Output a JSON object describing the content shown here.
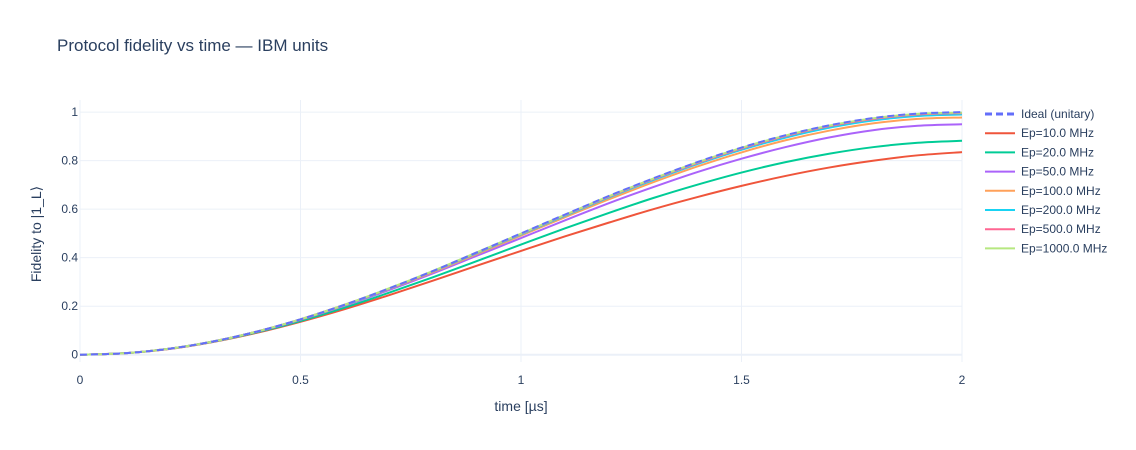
{
  "chart_data": {
    "type": "line",
    "title": "Protocol fidelity vs time — IBM units",
    "xlabel": "time [µs]",
    "ylabel": "Fidelity to |1_L⟩",
    "xlim": [
      0,
      2
    ],
    "ylim": [
      -0.03,
      1.05
    ],
    "xticks": [
      0,
      0.5,
      1,
      1.5,
      2
    ],
    "xtick_labels": [
      "0",
      "0.5",
      "1",
      "1.5",
      "2"
    ],
    "yticks": [
      0,
      0.2,
      0.4,
      0.6,
      0.8,
      1
    ],
    "ytick_labels": [
      "0",
      "0.2",
      "0.4",
      "0.6",
      "0.8",
      "1"
    ],
    "grid": true,
    "legend_position": "right",
    "x": [
      0,
      0.1,
      0.2,
      0.3,
      0.4,
      0.5,
      0.6,
      0.7,
      0.8,
      0.9,
      1.0,
      1.1,
      1.2,
      1.3,
      1.4,
      1.5,
      1.6,
      1.7,
      1.8,
      1.9,
      2.0
    ],
    "series": [
      {
        "name": "Ideal (unitary)",
        "color": "#636efa",
        "dash": true,
        "values": [
          0,
          0.006,
          0.024,
          0.054,
          0.095,
          0.146,
          0.206,
          0.273,
          0.345,
          0.422,
          0.5,
          0.578,
          0.655,
          0.727,
          0.794,
          0.854,
          0.905,
          0.946,
          0.976,
          0.994,
          1.0
        ]
      },
      {
        "name": "Ep=10.0 MHz",
        "color": "#ef553b",
        "dash": false,
        "values": [
          0,
          0.006,
          0.023,
          0.052,
          0.09,
          0.136,
          0.188,
          0.245,
          0.305,
          0.367,
          0.428,
          0.488,
          0.545,
          0.6,
          0.65,
          0.696,
          0.737,
          0.772,
          0.8,
          0.822,
          0.835
        ]
      },
      {
        "name": "Ep=20.0 MHz",
        "color": "#00cc96",
        "dash": false,
        "values": [
          0,
          0.006,
          0.024,
          0.053,
          0.092,
          0.139,
          0.194,
          0.255,
          0.319,
          0.386,
          0.454,
          0.521,
          0.585,
          0.646,
          0.701,
          0.751,
          0.794,
          0.829,
          0.856,
          0.874,
          0.882
        ]
      },
      {
        "name": "Ep=50.0 MHz",
        "color": "#ab63fa",
        "dash": false,
        "values": [
          0,
          0.006,
          0.024,
          0.054,
          0.094,
          0.144,
          0.202,
          0.266,
          0.335,
          0.408,
          0.481,
          0.554,
          0.625,
          0.691,
          0.753,
          0.808,
          0.856,
          0.896,
          0.926,
          0.944,
          0.95
        ]
      },
      {
        "name": "Ep=100.0 MHz",
        "color": "#ffa15a",
        "dash": false,
        "values": [
          0,
          0.006,
          0.024,
          0.054,
          0.095,
          0.145,
          0.204,
          0.27,
          0.34,
          0.415,
          0.491,
          0.567,
          0.641,
          0.711,
          0.776,
          0.834,
          0.884,
          0.924,
          0.954,
          0.972,
          0.978
        ]
      },
      {
        "name": "Ep=200.0 MHz",
        "color": "#19d3f3",
        "dash": false,
        "values": [
          0,
          0.006,
          0.024,
          0.054,
          0.095,
          0.146,
          0.205,
          0.271,
          0.343,
          0.419,
          0.496,
          0.573,
          0.649,
          0.72,
          0.786,
          0.845,
          0.895,
          0.936,
          0.966,
          0.984,
          0.99
        ]
      },
      {
        "name": "Ep=500.0 MHz",
        "color": "#ff6692",
        "dash": false,
        "values": [
          0,
          0.006,
          0.024,
          0.054,
          0.095,
          0.146,
          0.206,
          0.272,
          0.344,
          0.421,
          0.498,
          0.576,
          0.652,
          0.724,
          0.79,
          0.85,
          0.901,
          0.942,
          0.972,
          0.99,
          0.996
        ]
      },
      {
        "name": "Ep=1000.0 MHz",
        "color": "#b6e880",
        "dash": false,
        "values": [
          0,
          0.006,
          0.024,
          0.054,
          0.095,
          0.146,
          0.206,
          0.273,
          0.345,
          0.422,
          0.499,
          0.577,
          0.654,
          0.726,
          0.793,
          0.853,
          0.904,
          0.945,
          0.975,
          0.993,
          0.998
        ]
      }
    ]
  }
}
